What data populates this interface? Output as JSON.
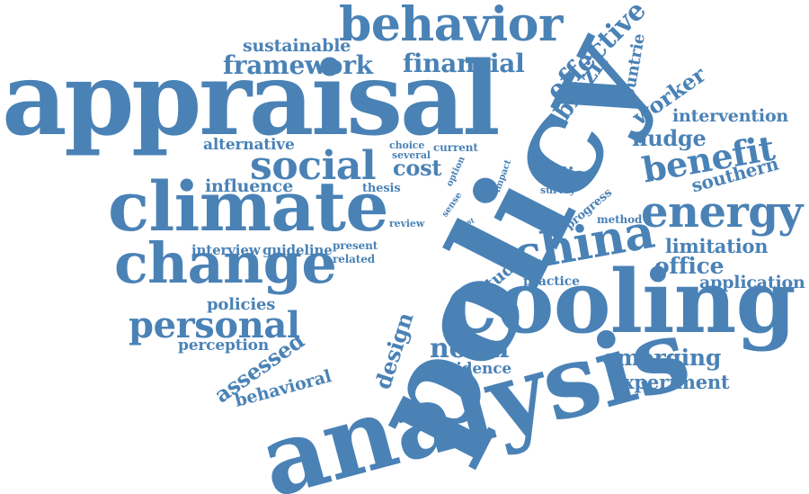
{
  "colors": {
    "word": "#4a82b6",
    "background": "#ffffff"
  },
  "words": [
    "appraisal",
    "policy",
    "analysis",
    "cooling",
    "climate",
    "change",
    "behavior",
    "china",
    "social",
    "energy",
    "personal",
    "benefit",
    "framework",
    "financial",
    "sustainable",
    "effective",
    "brazil",
    "countrie",
    "worker",
    "intervention",
    "nudge",
    "southern",
    "alternative",
    "influence",
    "choice",
    "several",
    "current",
    "cost",
    "option",
    "impact",
    "sense",
    "thesis",
    "india",
    "survey",
    "review",
    "test",
    "progress",
    "method",
    "limitation",
    "office",
    "application",
    "interview",
    "guideline",
    "present",
    "related",
    "study",
    "practice",
    "policies",
    "perception",
    "assessed",
    "design",
    "norm",
    "emerging",
    "evidence",
    "experiment",
    "behavioral"
  ]
}
